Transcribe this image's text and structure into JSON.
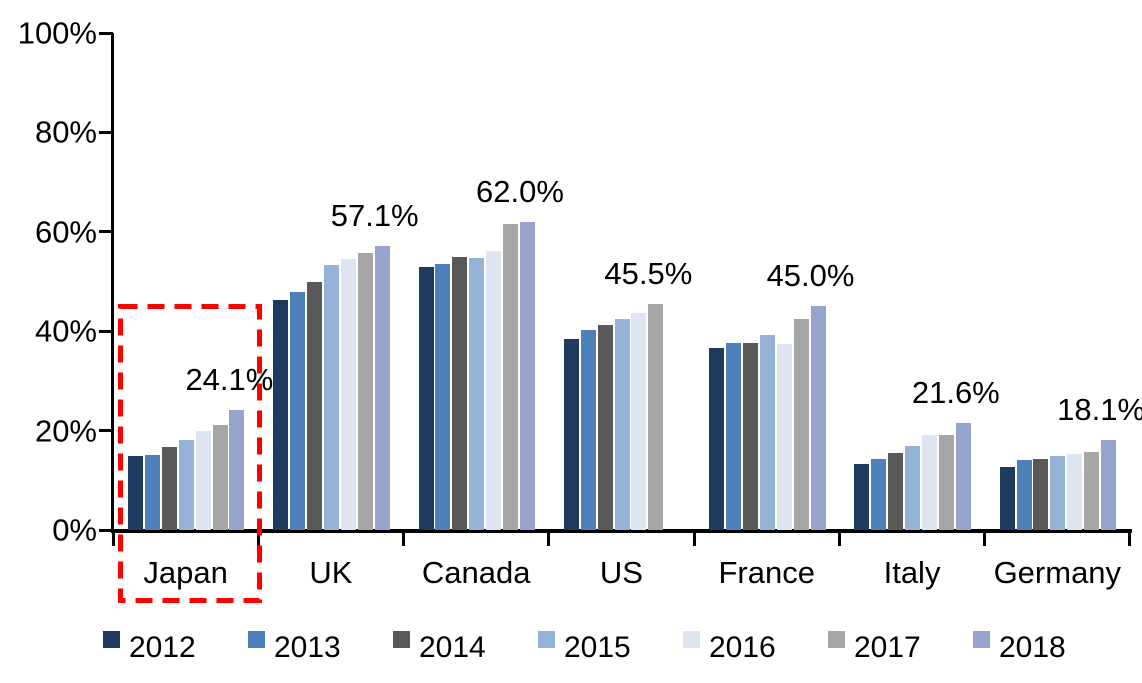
{
  "chart_data": {
    "type": "bar",
    "title": "",
    "xlabel": "",
    "ylabel": "",
    "ylim": [
      0,
      100
    ],
    "grid": false,
    "legend_position": "bottom",
    "axis_color": "#000000",
    "yticks": [
      "0%",
      "20%",
      "40%",
      "60%",
      "80%",
      "100%"
    ],
    "categories": [
      "Japan",
      "UK",
      "Canada",
      "US",
      "France",
      "Italy",
      "Germany"
    ],
    "series": [
      {
        "name": "2012",
        "color": "#1F3A5F",
        "values": [
          14.9,
          46.3,
          53.0,
          38.4,
          36.6,
          13.3,
          12.6
        ]
      },
      {
        "name": "2013",
        "color": "#4E80BC",
        "values": [
          15.0,
          47.8,
          53.5,
          40.3,
          37.7,
          14.2,
          14.0
        ]
      },
      {
        "name": "2014",
        "color": "#595959",
        "values": [
          16.8,
          50.0,
          54.9,
          41.2,
          37.6,
          15.4,
          14.3
        ]
      },
      {
        "name": "2015",
        "color": "#95B3D7",
        "values": [
          18.1,
          53.4,
          54.7,
          42.4,
          39.2,
          16.9,
          14.8
        ]
      },
      {
        "name": "2016",
        "color": "#DCE5F1",
        "values": [
          19.9,
          54.6,
          56.2,
          43.6,
          37.4,
          19.1,
          15.3
        ]
      },
      {
        "name": "2017",
        "color": "#A6A6A6",
        "values": [
          21.1,
          55.7,
          61.6,
          45.5,
          42.4,
          19.2,
          15.7
        ]
      },
      {
        "name": "2018",
        "color": "#95A4CD",
        "values": [
          24.1,
          57.1,
          62.0,
          null,
          45.0,
          21.6,
          18.1
        ]
      }
    ],
    "annotations": [
      {
        "category": "Japan",
        "text": "24.1%"
      },
      {
        "category": "UK",
        "text": "57.1%"
      },
      {
        "category": "Canada",
        "text": "62.0%"
      },
      {
        "category": "US",
        "text": "45.5%"
      },
      {
        "category": "France",
        "text": "45.0%"
      },
      {
        "category": "Italy",
        "text": "21.6%"
      },
      {
        "category": "Germany",
        "text": "18.1%"
      }
    ],
    "highlight": {
      "category": "Japan",
      "style": "dashed-rectangle",
      "color": "#FF0000"
    }
  }
}
